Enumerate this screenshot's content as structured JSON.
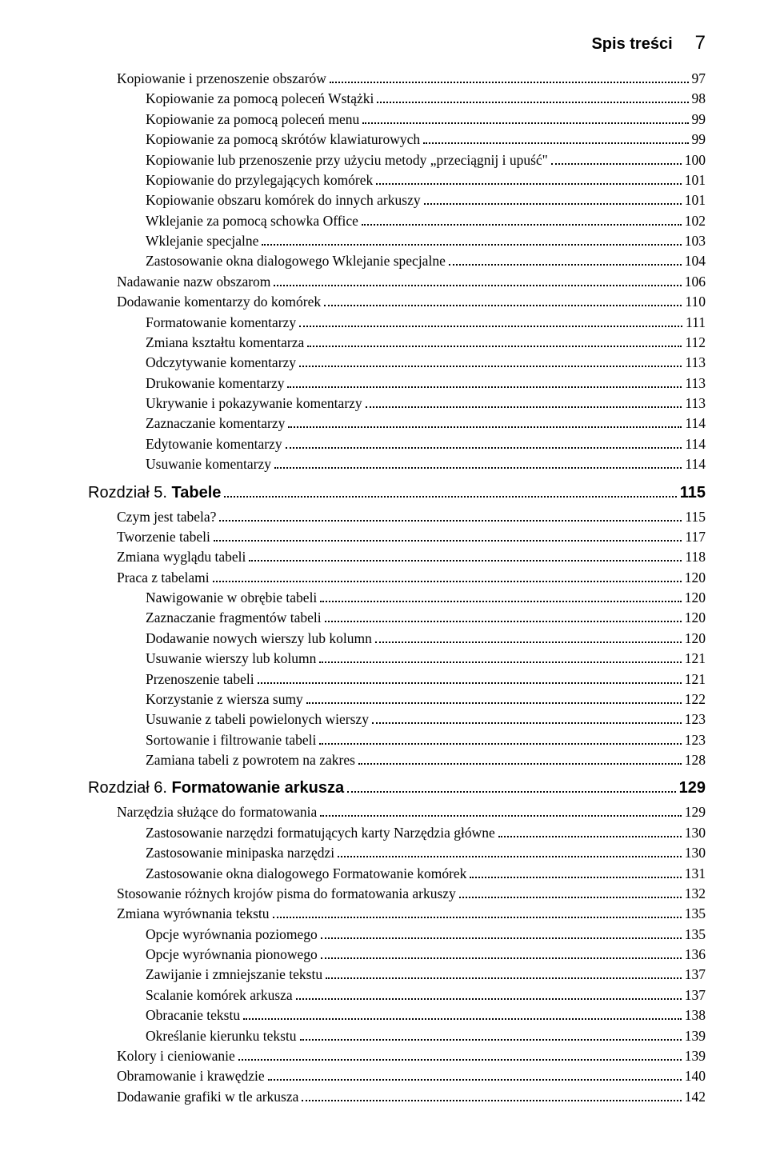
{
  "header": {
    "title": "Spis treści",
    "page_number": "7"
  },
  "entries": [
    {
      "level": 2,
      "label": "Kopiowanie i przenoszenie obszarów",
      "page": "97"
    },
    {
      "level": 3,
      "label": "Kopiowanie za pomocą poleceń Wstążki",
      "page": "98"
    },
    {
      "level": 3,
      "label": "Kopiowanie za pomocą poleceń menu",
      "page": "99"
    },
    {
      "level": 3,
      "label": "Kopiowanie za pomocą skrótów klawiaturowych",
      "page": "99"
    },
    {
      "level": 3,
      "label": "Kopiowanie lub przenoszenie przy użyciu metody „przeciągnij i upuść\"",
      "page": "100"
    },
    {
      "level": 3,
      "label": "Kopiowanie do przylegających komórek",
      "page": "101"
    },
    {
      "level": 3,
      "label": "Kopiowanie obszaru komórek do innych arkuszy",
      "page": "101"
    },
    {
      "level": 3,
      "label": "Wklejanie za pomocą schowka Office",
      "page": "102"
    },
    {
      "level": 3,
      "label": "Wklejanie specjalne",
      "page": "103"
    },
    {
      "level": 3,
      "label": "Zastosowanie okna dialogowego Wklejanie specjalne",
      "page": "104"
    },
    {
      "level": 2,
      "label": "Nadawanie nazw obszarom",
      "page": "106"
    },
    {
      "level": 2,
      "label": "Dodawanie komentarzy do komórek",
      "page": "110"
    },
    {
      "level": 3,
      "label": "Formatowanie komentarzy",
      "page": "111"
    },
    {
      "level": 3,
      "label": "Zmiana kształtu komentarza",
      "page": "112"
    },
    {
      "level": 3,
      "label": "Odczytywanie komentarzy",
      "page": "113"
    },
    {
      "level": 3,
      "label": "Drukowanie komentarzy",
      "page": "113"
    },
    {
      "level": 3,
      "label": "Ukrywanie i pokazywanie komentarzy",
      "page": "113"
    },
    {
      "level": 3,
      "label": "Zaznaczanie komentarzy",
      "page": "114"
    },
    {
      "level": 3,
      "label": "Edytowanie komentarzy",
      "page": "114"
    },
    {
      "level": 3,
      "label": "Usuwanie komentarzy",
      "page": "114"
    },
    {
      "type": "chapter",
      "chapnum": "Rozdział 5. ",
      "chaptitle": "Tabele",
      "page": "115"
    },
    {
      "level": 2,
      "label": "Czym jest tabela?",
      "page": "115"
    },
    {
      "level": 2,
      "label": "Tworzenie tabeli",
      "page": "117"
    },
    {
      "level": 2,
      "label": "Zmiana wyglądu tabeli",
      "page": "118"
    },
    {
      "level": 2,
      "label": "Praca z tabelami",
      "page": "120"
    },
    {
      "level": 3,
      "label": "Nawigowanie w obrębie tabeli",
      "page": "120"
    },
    {
      "level": 3,
      "label": "Zaznaczanie fragmentów tabeli",
      "page": "120"
    },
    {
      "level": 3,
      "label": "Dodawanie nowych wierszy lub kolumn",
      "page": "120"
    },
    {
      "level": 3,
      "label": "Usuwanie wierszy lub kolumn",
      "page": "121"
    },
    {
      "level": 3,
      "label": "Przenoszenie tabeli",
      "page": "121"
    },
    {
      "level": 3,
      "label": "Korzystanie z wiersza sumy",
      "page": "122"
    },
    {
      "level": 3,
      "label": "Usuwanie z tabeli powielonych wierszy",
      "page": "123"
    },
    {
      "level": 3,
      "label": "Sortowanie i filtrowanie tabeli",
      "page": "123"
    },
    {
      "level": 3,
      "label": "Zamiana tabeli z powrotem na zakres",
      "page": "128"
    },
    {
      "type": "chapter",
      "chapnum": "Rozdział 6. ",
      "chaptitle": "Formatowanie arkusza",
      "page": "129"
    },
    {
      "level": 2,
      "label": "Narzędzia służące do formatowania",
      "page": "129"
    },
    {
      "level": 3,
      "label": "Zastosowanie narzędzi formatujących karty Narzędzia główne",
      "page": "130"
    },
    {
      "level": 3,
      "label": "Zastosowanie minipaska narzędzi",
      "page": "130"
    },
    {
      "level": 3,
      "label": "Zastosowanie okna dialogowego Formatowanie komórek",
      "page": "131"
    },
    {
      "level": 2,
      "label": "Stosowanie różnych krojów pisma do formatowania arkuszy",
      "page": "132"
    },
    {
      "level": 2,
      "label": "Zmiana wyrównania tekstu",
      "page": "135"
    },
    {
      "level": 3,
      "label": "Opcje wyrównania poziomego",
      "page": "135"
    },
    {
      "level": 3,
      "label": "Opcje wyrównania pionowego",
      "page": "136"
    },
    {
      "level": 3,
      "label": "Zawijanie i zmniejszanie tekstu",
      "page": "137"
    },
    {
      "level": 3,
      "label": "Scalanie komórek arkusza",
      "page": "137"
    },
    {
      "level": 3,
      "label": "Obracanie tekstu",
      "page": "138"
    },
    {
      "level": 3,
      "label": "Określanie kierunku tekstu",
      "page": "139"
    },
    {
      "level": 2,
      "label": "Kolory i cieniowanie",
      "page": "139"
    },
    {
      "level": 2,
      "label": "Obramowanie i krawędzie",
      "page": "140"
    },
    {
      "level": 2,
      "label": "Dodawanie grafiki w tle arkusza",
      "page": "142"
    }
  ]
}
